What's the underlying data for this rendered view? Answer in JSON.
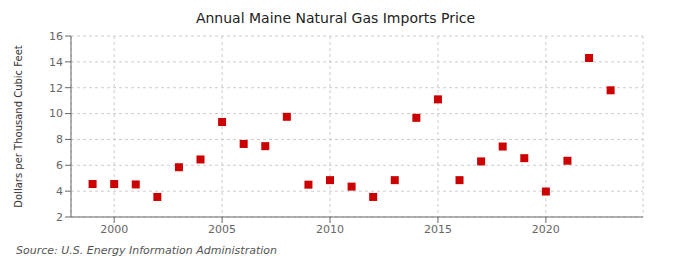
{
  "chart_data": {
    "type": "scatter",
    "title": "Annual Maine Natural Gas Imports Price",
    "ylabel": "Dollars per Thousand Cubic Feet",
    "source": "Source: U.S. Energy Information Administration",
    "x": [
      1999,
      2000,
      2001,
      2002,
      2003,
      2004,
      2005,
      2006,
      2007,
      2008,
      2009,
      2010,
      2011,
      2012,
      2013,
      2014,
      2015,
      2016,
      2017,
      2018,
      2019,
      2020,
      2021,
      2022,
      2023
    ],
    "values": [
      4.55,
      4.55,
      4.52,
      3.55,
      5.85,
      6.45,
      9.35,
      7.65,
      7.48,
      9.75,
      4.5,
      4.85,
      4.35,
      3.55,
      4.85,
      9.67,
      11.1,
      4.85,
      6.3,
      7.45,
      6.55,
      3.97,
      6.35,
      14.3,
      11.8
    ],
    "color": "#cc0000",
    "marker": "square",
    "xlim": [
      1998.0,
      2024.5
    ],
    "ylim": [
      2,
      16
    ],
    "xticks": [
      2000,
      2005,
      2010,
      2015,
      2020
    ],
    "yticks": [
      2,
      4,
      6,
      8,
      10,
      12,
      14,
      16
    ],
    "grid": true
  }
}
